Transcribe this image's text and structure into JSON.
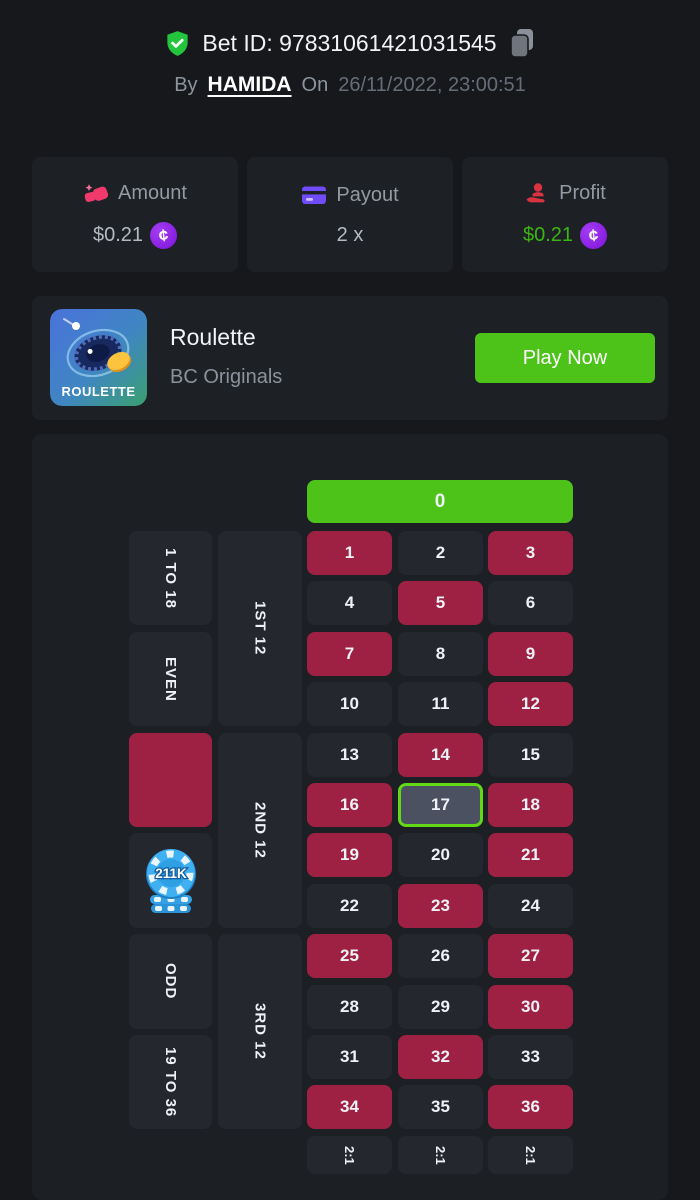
{
  "header": {
    "bet_id_label": "Bet ID:",
    "bet_id_value": "97831061421031545",
    "by_label": "By",
    "username": "HAMIDA",
    "on_label": "On",
    "datetime": "26/11/2022, 23:00:51"
  },
  "stats": {
    "amount": {
      "label": "Amount",
      "value": "$0.21",
      "icon": "gems-icon"
    },
    "payout": {
      "label": "Payout",
      "value": "2 x",
      "icon": "credit-card-icon"
    },
    "profit": {
      "label": "Profit",
      "value": "$0.21",
      "icon": "hand-user-icon"
    }
  },
  "coin_glyph": "¢",
  "game": {
    "title": "Roulette",
    "provider": "BC Originals",
    "icon_label": "ROULETTE",
    "play_button_label": "Play Now"
  },
  "board": {
    "zero_label": "0",
    "rows": 12,
    "cols": 3,
    "red_numbers": [
      1,
      3,
      5,
      7,
      9,
      12,
      14,
      16,
      18,
      19,
      21,
      23,
      25,
      27,
      30,
      32,
      34,
      36
    ],
    "winning_number": 17,
    "outside_bets": [
      {
        "label": "1 TO 18",
        "type": "label"
      },
      {
        "label": "EVEN",
        "type": "label"
      },
      {
        "label": "",
        "type": "red"
      },
      {
        "label": "",
        "type": "black"
      },
      {
        "label": "ODD",
        "type": "label"
      },
      {
        "label": "19 TO 36",
        "type": "label"
      }
    ],
    "dozen_bets": [
      "1ST 12",
      "2ND 12",
      "3RD 12"
    ],
    "column_bets": [
      "2:1",
      "2:1",
      "2:1"
    ],
    "chip_value": "211K"
  },
  "colors": {
    "accent_green": "#4dc31a",
    "win_border": "#62d816",
    "red_cell": "#9e2144",
    "profit_green": "#3cb510",
    "coin_purple": "#8d1fe8",
    "chip_blue": "#3fb0f2",
    "card_bg": "#1d2025",
    "page_bg": "#16181c"
  }
}
